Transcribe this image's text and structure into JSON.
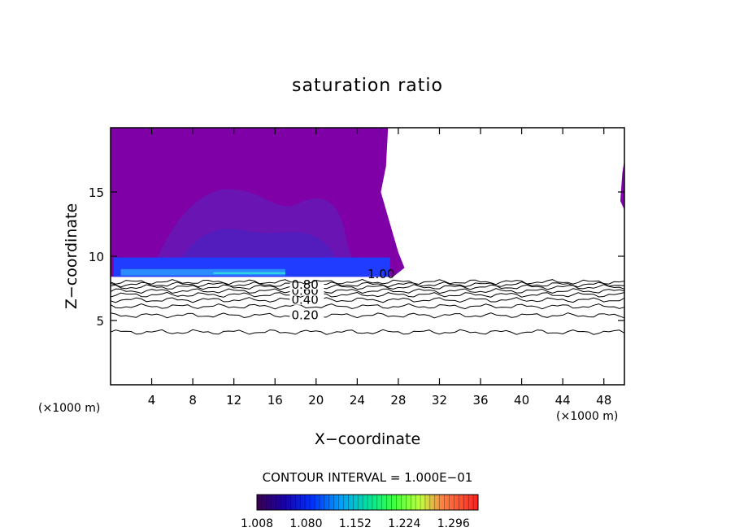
{
  "chart_data": {
    "type": "contour",
    "title": "saturation ratio",
    "xlabel": "X−coordinate",
    "ylabel": "Z−coordinate",
    "x_unit_left": "(×1000 m)",
    "x_unit_right": "(×1000 m)",
    "xlim": [
      0,
      50
    ],
    "ylim": [
      0,
      20
    ],
    "x_ticks": [
      4,
      8,
      12,
      16,
      20,
      24,
      28,
      32,
      36,
      40,
      44,
      48
    ],
    "y_ticks": [
      5,
      10,
      15
    ],
    "contour_interval_text": "CONTOUR INTERVAL = 1.000E−01",
    "contour_lines": [
      {
        "level": 0.1,
        "z": 4.1
      },
      {
        "level": 0.2,
        "z": 5.4,
        "label": "0.20",
        "label_x": 17.6
      },
      {
        "level": 0.3,
        "z": 6.1
      },
      {
        "level": 0.4,
        "z": 6.6,
        "label": "0.40",
        "label_x": 17.6
      },
      {
        "level": 0.5,
        "z": 7.0
      },
      {
        "level": 0.6,
        "z": 7.3,
        "label": "0.60",
        "label_x": 17.6
      },
      {
        "level": 0.7,
        "z": 7.6
      },
      {
        "level": 0.8,
        "z": 7.8,
        "label": "0.80",
        "label_x": 17.6
      },
      {
        "level": 0.9,
        "z": 8.0
      }
    ],
    "extra_labels": [
      {
        "text": "1.00",
        "x": 25.0,
        "z": 8.3
      }
    ],
    "colorbar": {
      "tick_labels": [
        "1.008",
        "1.080",
        "1.152",
        "1.224",
        "1.296"
      ],
      "range": [
        1.008,
        1.332
      ]
    },
    "colors": {
      "cloud_fill": "#8000a8",
      "cloud_inner": "#6a14b4",
      "cloud_core": "#4a20c0",
      "cloud_base": "#1f3cff",
      "cloud_base_bright": "#2a8cff",
      "cloud_base_cyan": "#30e0e0"
    }
  }
}
